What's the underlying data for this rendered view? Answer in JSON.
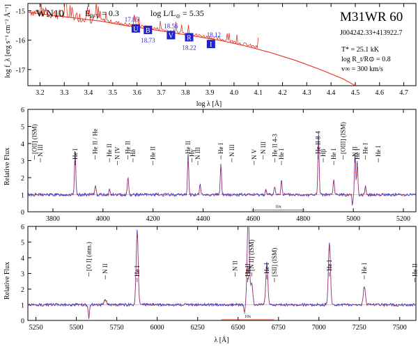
{
  "sed_panel": {
    "type": "line",
    "wr_type": "WN10",
    "ebv_label": "E",
    "ebv_sub": "B-V",
    "ebv_value": "= 0.3",
    "logL_text": "log L/L",
    "logL_value": "= 5.35",
    "star_name": "M31WR 60",
    "star_id": "J004242.33+413922.7",
    "teff": "T* = 25.1 kK",
    "rt": "log R_t/R⊙ = 0.8",
    "vinf": "v∞ = 300 km/s",
    "xlabel": "log λ [Å]",
    "ylabel": "log f_λ [erg s⁻¹ cm⁻² Å⁻¹]",
    "xlim": [
      3.15,
      4.75
    ],
    "ylim": [
      -17.55,
      -14.75
    ],
    "xticks": [
      "3.2",
      "3.3",
      "3.4",
      "3.5",
      "3.6",
      "3.7",
      "3.8",
      "3.9",
      "4.0",
      "4.1",
      "4.2",
      "4.3",
      "4.4",
      "4.5",
      "4.6",
      "4.7"
    ],
    "yticks": [
      "-15",
      "-16",
      "-17"
    ],
    "model_sed": [
      [
        3.15,
        -15.05
      ],
      [
        3.25,
        -15.15
      ],
      [
        3.35,
        -15.25
      ],
      [
        3.45,
        -15.35
      ],
      [
        3.55,
        -15.5
      ],
      [
        3.65,
        -15.62
      ],
      [
        3.75,
        -15.75
      ],
      [
        3.85,
        -15.88
      ],
      [
        3.95,
        -16.02
      ],
      [
        4.05,
        -16.2
      ],
      [
        4.15,
        -16.42
      ],
      [
        4.25,
        -16.68
      ],
      [
        4.35,
        -16.98
      ],
      [
        4.45,
        -17.32
      ],
      [
        4.5,
        -17.55
      ]
    ],
    "photometry": [
      {
        "band": "U",
        "x": 3.595,
        "y": -15.6,
        "mag": "17.85"
      },
      {
        "band": "B",
        "x": 3.645,
        "y": -15.65,
        "mag": "18.73"
      },
      {
        "band": "V",
        "x": 3.74,
        "y": -15.83,
        "mag": "18.56"
      },
      {
        "band": "R",
        "x": 3.815,
        "y": -15.9,
        "mag": "18.22"
      },
      {
        "band": "I",
        "x": 3.905,
        "y": -16.13,
        "mag": "18.12"
      }
    ]
  },
  "spec_panel_1": {
    "type": "line",
    "xlim": [
      3700,
      5250
    ],
    "ylim": [
      0,
      6
    ],
    "xticks": [
      "3800",
      "4000",
      "4200",
      "4400",
      "4600",
      "4800",
      "5000",
      "5200"
    ],
    "yticks": [
      "0",
      "1",
      "2",
      "3",
      "4",
      "5",
      "6"
    ],
    "ylabel": "Relative Flux",
    "scale_bar": "10x",
    "lines": [
      {
        "x": 3727,
        "label": "[OII] (ISM)"
      },
      {
        "x": 3750,
        "label": "N III"
      },
      {
        "x": 3889,
        "label": "He I"
      },
      {
        "x": 3968,
        "label": "He II / He"
      },
      {
        "x": 4026,
        "label": "He II"
      },
      {
        "x": 4058,
        "label": "N IV"
      },
      {
        "x": 4100,
        "label": "He II"
      },
      {
        "x": 4120,
        "label": "Hδ"
      },
      {
        "x": 4200,
        "label": "He II"
      },
      {
        "x": 4340,
        "label": "He II"
      },
      {
        "x": 4355,
        "label": "Hγ"
      },
      {
        "x": 4379,
        "label": "N III"
      },
      {
        "x": 4471,
        "label": "He I"
      },
      {
        "x": 4515,
        "label": "N III"
      },
      {
        "x": 4604,
        "label": "N V"
      },
      {
        "x": 4640,
        "label": "N III"
      },
      {
        "x": 4686,
        "label": "He II 4-3"
      },
      {
        "x": 4713,
        "label": "He I"
      },
      {
        "x": 4859,
        "label": "He II 8-4"
      },
      {
        "x": 4880,
        "label": "Hβ"
      },
      {
        "x": 4922,
        "label": "He I"
      },
      {
        "x": 4959,
        "label": "[OIII] (ISM)"
      },
      {
        "x": 5007,
        "label": "N II"
      },
      {
        "x": 5016,
        "label": "He I"
      },
      {
        "x": 5048,
        "label": "He I"
      },
      {
        "x": 5100,
        "label": "He I"
      }
    ]
  },
  "spec_panel_2": {
    "type": "line",
    "xlim": [
      5200,
      7600
    ],
    "ylim": [
      0,
      6
    ],
    "xticks": [
      "5250",
      "5500",
      "5750",
      "6000",
      "6250",
      "6500",
      "6750",
      "7000",
      "7250",
      "7500"
    ],
    "yticks": [
      "0",
      "1",
      "2",
      "3",
      "4",
      "5",
      "6"
    ],
    "ylabel": "Relative Flux",
    "xlabel": "λ [Å]",
    "scale_bar": "10x",
    "lines": [
      {
        "x": 5577,
        "label": "[O I] (atm.)"
      },
      {
        "x": 5679,
        "label": "N II"
      },
      {
        "x": 5876,
        "label": "He I"
      },
      {
        "x": 6482,
        "label": "N II"
      },
      {
        "x": 6563,
        "label": "Hα"
      },
      {
        "x": 6560,
        "label": "He II"
      },
      {
        "x": 6584,
        "label": "[N II] (ISM)"
      },
      {
        "x": 6678,
        "label": "He I"
      },
      {
        "x": 6725,
        "label": "[SII] (ISM)"
      },
      {
        "x": 7065,
        "label": "He I"
      },
      {
        "x": 7281,
        "label": "He I"
      },
      {
        "x": 7593,
        "label": "He II"
      }
    ]
  },
  "colors": {
    "model": "#e8301c",
    "observed": "#2b2bd6",
    "phot_box": "#2222cc",
    "phot_text": "#2a2ad8"
  }
}
